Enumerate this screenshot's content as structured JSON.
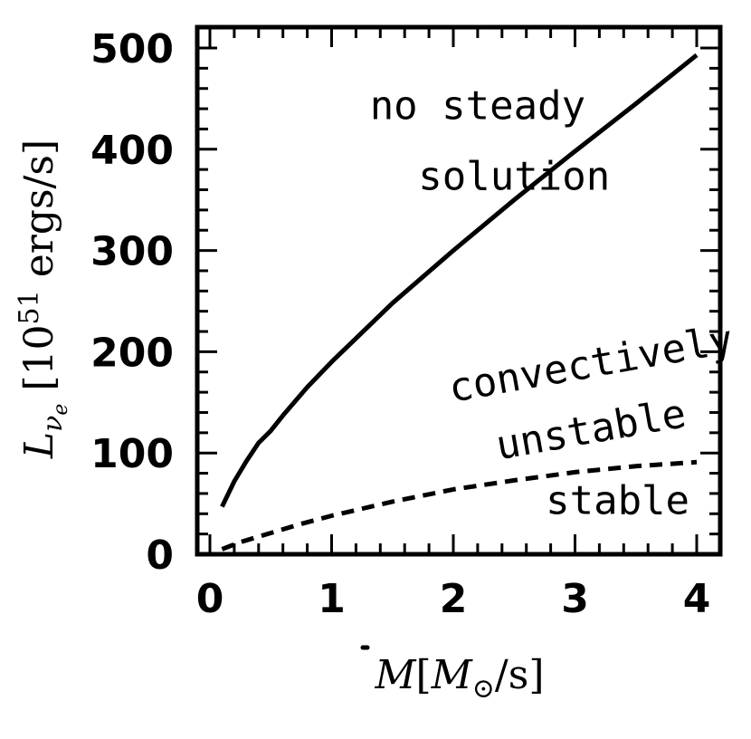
{
  "chart_data": {
    "type": "line",
    "xlabel_parts": {
      "symbol": "M",
      "open_bracket": "[",
      "unit_symbol": "M",
      "unit_subscript": "⊙",
      "unit_rest": "/s]"
    },
    "ylabel_parts": {
      "symbol": "L",
      "subscript": "ν",
      "subsubscript": "e",
      "unit": "[10",
      "unit_exponent": "51",
      "unit_rest": " ergs/s]"
    },
    "xlim": [
      0,
      4
    ],
    "ylim": [
      0,
      500
    ],
    "x_ticks": [
      "0",
      "1",
      "2",
      "3",
      "4"
    ],
    "y_ticks": [
      "0",
      "100",
      "200",
      "300",
      "400",
      "500"
    ],
    "grid": false,
    "series": [
      {
        "style": "solid",
        "x": [
          0.1,
          0.2,
          0.3,
          0.4,
          0.5,
          0.6,
          0.8,
          1.0,
          1.5,
          2.0,
          2.5,
          3.0,
          3.5,
          4.0
        ],
        "y": [
          47,
          72,
          92,
          110,
          122,
          137,
          165,
          190,
          248,
          300,
          350,
          398,
          445,
          493
        ]
      },
      {
        "style": "dashed",
        "x": [
          0.1,
          0.25,
          0.5,
          0.75,
          1.0,
          1.5,
          2.0,
          2.5,
          3.0,
          3.5,
          4.0
        ],
        "y": [
          5,
          12,
          21,
          30,
          38,
          52,
          64,
          73,
          81,
          87,
          91
        ]
      }
    ],
    "annotations": [
      {
        "text": "no steady",
        "x": 2.2,
        "y": 430
      },
      {
        "text": "solution",
        "x": 2.5,
        "y": 360
      },
      {
        "text": "convectively",
        "x": 3.15,
        "y": 175,
        "rotate": -10
      },
      {
        "text": "unstable",
        "x": 3.15,
        "y": 110,
        "rotate": -10
      },
      {
        "text": "stable",
        "x": 3.35,
        "y": 40
      }
    ]
  }
}
